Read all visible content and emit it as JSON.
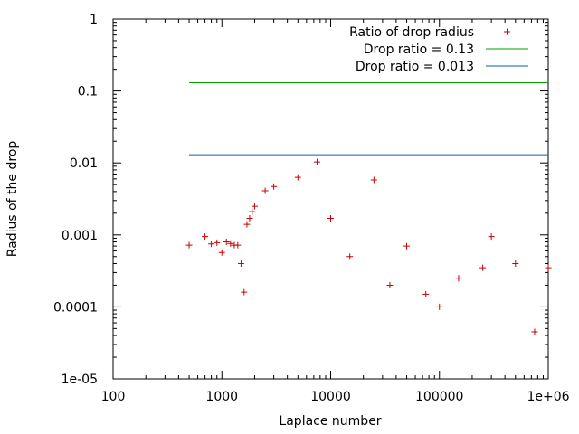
{
  "chart_data": {
    "type": "scatter",
    "title": "",
    "xlabel": "Laplace number",
    "ylabel": "Radius of the drop",
    "x_scale": "log",
    "y_scale": "log",
    "xlim": [
      100,
      1000000
    ],
    "ylim": [
      1e-05,
      1
    ],
    "x_ticks": [
      {
        "value": 100,
        "label": "100"
      },
      {
        "value": 1000,
        "label": "1000"
      },
      {
        "value": 10000,
        "label": "10000"
      },
      {
        "value": 100000,
        "label": "100000"
      },
      {
        "value": 1000000,
        "label": "1e+06"
      }
    ],
    "y_ticks": [
      {
        "value": 1,
        "label": "1"
      },
      {
        "value": 0.1,
        "label": "0.1"
      },
      {
        "value": 0.01,
        "label": "0.01"
      },
      {
        "value": 0.001,
        "label": "0.001"
      },
      {
        "value": 0.0001,
        "label": "0.0001"
      },
      {
        "value": 1e-05,
        "label": "1e-05"
      }
    ],
    "grid": false,
    "legend_position": "top-right",
    "series": [
      {
        "name": "Ratio of drop radius",
        "kind": "points",
        "color": "#cc0000",
        "points": [
          [
            500,
            0.00072
          ],
          [
            700,
            0.00095
          ],
          [
            800,
            0.00075
          ],
          [
            900,
            0.00078
          ],
          [
            1000,
            0.00057
          ],
          [
            1100,
            0.0008
          ],
          [
            1200,
            0.00076
          ],
          [
            1300,
            0.00072
          ],
          [
            1400,
            0.00072
          ],
          [
            1500,
            0.0004
          ],
          [
            1600,
            0.00016
          ],
          [
            1700,
            0.0014
          ],
          [
            1800,
            0.0017
          ],
          [
            1900,
            0.0021
          ],
          [
            2000,
            0.0025
          ],
          [
            2500,
            0.0041
          ],
          [
            3000,
            0.0047
          ],
          [
            5000,
            0.0063
          ],
          [
            7500,
            0.0103
          ],
          [
            10000,
            0.0017
          ],
          [
            15000,
            0.0005
          ],
          [
            25000,
            0.0058
          ],
          [
            35000,
            0.0002
          ],
          [
            50000,
            0.0007
          ],
          [
            75000,
            0.00015
          ],
          [
            100000,
            0.0001
          ],
          [
            150000,
            0.00025
          ],
          [
            250000,
            0.00035
          ],
          [
            300000,
            0.00095
          ],
          [
            500000,
            0.0004
          ],
          [
            750000,
            4.5e-05
          ],
          [
            1000000,
            0.00035
          ]
        ]
      },
      {
        "name": "Drop ratio = 0.13",
        "kind": "hline",
        "color": "#00a000",
        "y": 0.13,
        "x_range": [
          500,
          1000000
        ]
      },
      {
        "name": "Drop ratio = 0.013",
        "kind": "hline",
        "color": "#0060ad",
        "y": 0.013,
        "x_range": [
          500,
          1000000
        ]
      }
    ]
  }
}
